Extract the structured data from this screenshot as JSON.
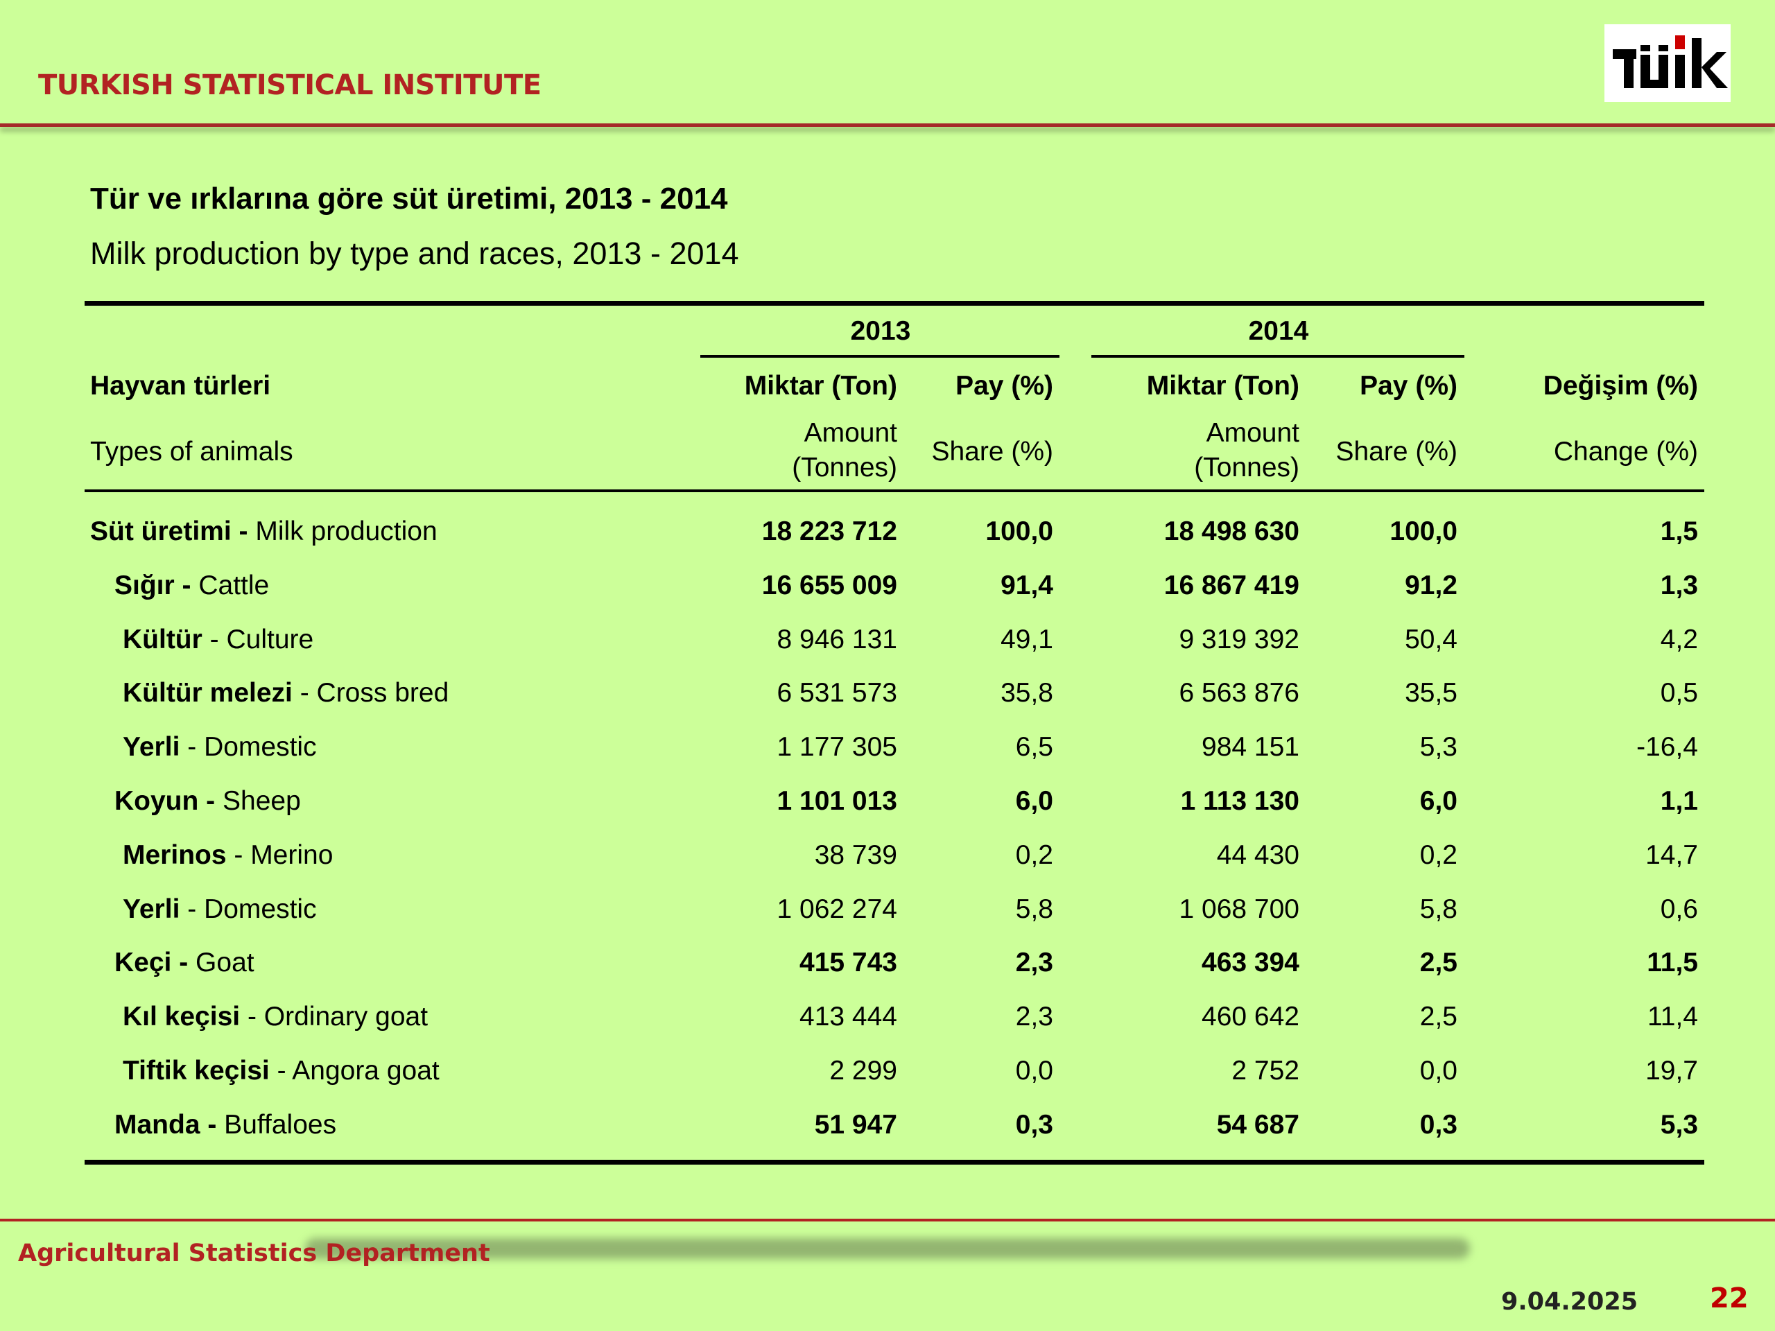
{
  "header": {
    "institute": "TURKISH STATISTICAL INSTITUTE",
    "logo_text": "TÜİK",
    "logo_color": "#000000",
    "logo_accent": "#cc0000"
  },
  "title": {
    "turkish": "Tür ve ırklarına göre süt üretimi, 2013 - 2014",
    "english": "Milk production by type and races, 2013 - 2014"
  },
  "table": {
    "year_2013": "2013",
    "year_2014": "2014",
    "col_animal_tr": "Hayvan türleri",
    "col_animal_en": "Types of animals",
    "col_amount_tr": "Miktar (Ton)",
    "col_amount_en_1": "Amount",
    "col_amount_en_2": "(Tonnes)",
    "col_share_tr": "Pay (%)",
    "col_share_en": "Share (%)",
    "col_change_tr": "Değişim (%)",
    "col_change_en": "Change (%)",
    "rows": [
      {
        "name_tr": "Süt üretimi -",
        "name_en": " Milk production",
        "level": 0,
        "bold": true,
        "a2013": "18 223 712",
        "s2013": "100,0",
        "a2014": "18 498 630",
        "s2014": "100,0",
        "change": "1,5"
      },
      {
        "name_tr": "Sığır -",
        "name_en": " Cattle",
        "level": 1,
        "bold": true,
        "a2013": "16 655 009",
        "s2013": "91,4",
        "a2014": "16 867 419",
        "s2014": "91,2",
        "change": "1,3"
      },
      {
        "name_tr": "Kültür",
        "name_en": " - Culture",
        "level": 2,
        "bold": false,
        "a2013": "8 946 131",
        "s2013": "49,1",
        "a2014": "9 319 392",
        "s2014": "50,4",
        "change": "4,2"
      },
      {
        "name_tr": "Kültür melezi",
        "name_en": " - Cross bred",
        "level": 2,
        "bold": false,
        "a2013": "6 531 573",
        "s2013": "35,8",
        "a2014": "6 563 876",
        "s2014": "35,5",
        "change": "0,5"
      },
      {
        "name_tr": "Yerli",
        "name_en": " - Domestic",
        "level": 2,
        "bold": false,
        "a2013": "1 177 305",
        "s2013": "6,5",
        "a2014": "984 151",
        "s2014": "5,3",
        "change": "-16,4"
      },
      {
        "name_tr": "Koyun -",
        "name_en": " Sheep",
        "level": 1,
        "bold": true,
        "a2013": "1 101 013",
        "s2013": "6,0",
        "a2014": "1 113 130",
        "s2014": "6,0",
        "change": "1,1"
      },
      {
        "name_tr": "Merinos",
        "name_en": " - Merino",
        "level": 2,
        "bold": false,
        "a2013": "38 739",
        "s2013": "0,2",
        "a2014": "44 430",
        "s2014": "0,2",
        "change": "14,7"
      },
      {
        "name_tr": "Yerli",
        "name_en": " - Domestic",
        "level": 2,
        "bold": false,
        "a2013": "1 062 274",
        "s2013": "5,8",
        "a2014": "1 068 700",
        "s2014": "5,8",
        "change": "0,6"
      },
      {
        "name_tr": "Keçi -",
        "name_en": " Goat",
        "level": 1,
        "bold": true,
        "a2013": "415 743",
        "s2013": "2,3",
        "a2014": "463 394",
        "s2014": "2,5",
        "change": "11,5"
      },
      {
        "name_tr": "Kıl keçisi",
        "name_en": " - Ordinary goat",
        "level": 2,
        "bold": false,
        "a2013": "413 444",
        "s2013": "2,3",
        "a2014": "460 642",
        "s2014": "2,5",
        "change": "11,4"
      },
      {
        "name_tr": "Tiftik keçisi",
        "name_en": " - Angora goat",
        "level": 2,
        "bold": false,
        "a2013": "2 299",
        "s2013": "0,0",
        "a2014": "2 752",
        "s2014": "0,0",
        "change": "19,7"
      },
      {
        "name_tr": "Manda -",
        "name_en": " Buffaloes",
        "level": 1,
        "bold": true,
        "a2013": "51 947",
        "s2013": "0,3",
        "a2014": "54 687",
        "s2014": "0,3",
        "change": "5,3"
      }
    ]
  },
  "footer": {
    "department": "Agricultural Statistics Department",
    "date": "9.04.2025",
    "page": "22"
  }
}
